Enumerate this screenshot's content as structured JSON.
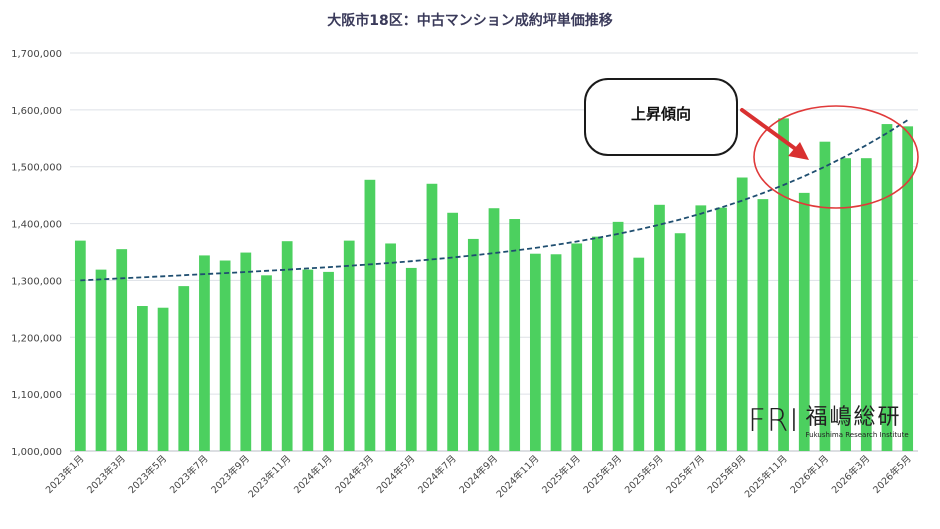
{
  "chart_data": {
    "type": "bar",
    "title": "大阪市18区：中古マンション成約坪単価推移",
    "ylim": [
      1000000,
      1700000
    ],
    "yticks": [
      1000000,
      1100000,
      1200000,
      1300000,
      1400000,
      1500000,
      1600000,
      1700000
    ],
    "ytick_labels": [
      "1,000,000",
      "1,100,000",
      "1,200,000",
      "1,300,000",
      "1,400,000",
      "1,500,000",
      "1,600,000",
      "1,700,000"
    ],
    "grid": "horizontal",
    "categories": [
      "2023年1月",
      "2023年2月",
      "2023年3月",
      "2023年4月",
      "2023年5月",
      "2023年6月",
      "2023年7月",
      "2023年8月",
      "2023年9月",
      "2023年10月",
      "2023年11月",
      "2023年12月",
      "2024年1月",
      "2024年2月",
      "2024年3月",
      "2024年4月",
      "2024年5月",
      "2024年6月",
      "2024年7月",
      "2024年8月",
      "2024年9月",
      "2024年10月",
      "2024年11月",
      "2024年12月",
      "2025年1月",
      "2025年2月",
      "2025年3月",
      "2025年4月",
      "2025年5月",
      "2025年6月",
      "2025年7月",
      "2025年8月",
      "2025年9月",
      "2025年10月",
      "2025年11月",
      "2025年12月",
      "2026年1月",
      "2026年2月",
      "2026年3月",
      "2026年4月",
      "2026年5月"
    ],
    "tick_labels_shown": [
      "2023年1月",
      "2023年3月",
      "2023年5月",
      "2023年7月",
      "2023年9月",
      "2023年11月",
      "2024年1月",
      "2024年3月",
      "2024年5月",
      "2024年7月",
      "2024年9月",
      "2024年11月",
      "2025年1月",
      "2025年3月",
      "2025年5月",
      "2025年7月",
      "2025年9月",
      "2025年11月",
      "2026年1月",
      "2026年3月",
      "2026年5月"
    ],
    "values": [
      1370000,
      1319000,
      1355000,
      1255000,
      1252000,
      1290000,
      1344000,
      1335000,
      1349000,
      1309000,
      1369000,
      1319000,
      1315000,
      1370000,
      1477000,
      1365000,
      1322000,
      1470000,
      1419000,
      1373000,
      1427000,
      1408000,
      1347000,
      1346000,
      1365000,
      1377000,
      1403000,
      1340000,
      1433000,
      1383000,
      1432000,
      1428000,
      1481000,
      1443000,
      1585000,
      1454000,
      1544000,
      1515000,
      1515000,
      1575000,
      1571000
    ],
    "trendline": {
      "type": "polynomial",
      "style": "dashed",
      "start": 1300000,
      "end": 1582000
    },
    "annotation": {
      "text": "上昇傾向"
    },
    "colors": {
      "bar": "#4cd05f",
      "trend": "#1f4e70",
      "circle": "#e03a3a",
      "arrow": "#d93030"
    }
  },
  "logo": {
    "mark": "FRI",
    "name_jp": "福嶋総研",
    "name_en": "Fukushima Research Institute"
  }
}
